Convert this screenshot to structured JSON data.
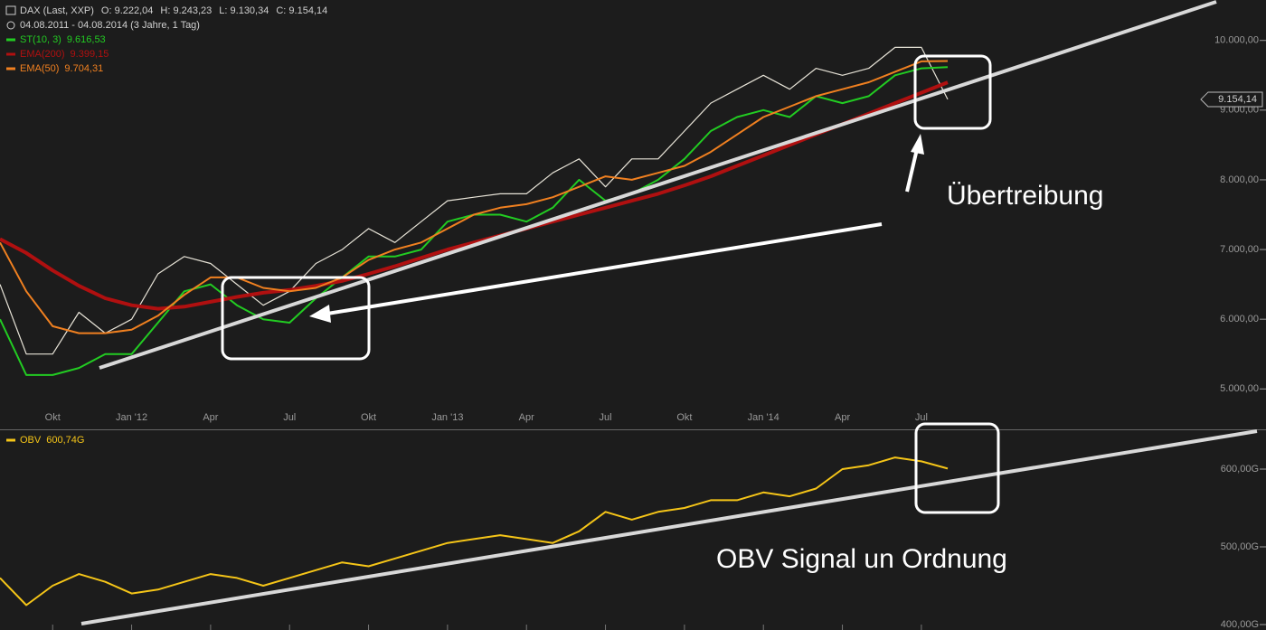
{
  "chart_data": [
    {
      "type": "line",
      "subtitle": "04.08.2011 - 04.08.2014 (3 Jahre, 1 Tag)",
      "ohlc": [
        "O: 9.222,04",
        "H: 9.243,23",
        "L: 9.130,34",
        "C: 9.154,14"
      ],
      "categories": [
        null,
        null,
        "Okt",
        null,
        null,
        "Jan '12",
        null,
        null,
        "Apr",
        null,
        null,
        "Jul",
        null,
        null,
        "Okt",
        null,
        null,
        "Jan '13",
        null,
        null,
        "Apr",
        null,
        null,
        "Jul",
        null,
        null,
        "Okt",
        null,
        null,
        "Jan '14",
        null,
        null,
        "Apr",
        null,
        null,
        "Jul",
        null
      ],
      "series": [
        {
          "name": "DAX (Last, XXP)",
          "color": "#e8e4d8",
          "values": [
            6500,
            5500,
            5500,
            6100,
            5800,
            6000,
            6650,
            6900,
            6800,
            6500,
            6200,
            6400,
            6800,
            7000,
            7300,
            7100,
            7400,
            7700,
            7750,
            7800,
            7800,
            8100,
            8300,
            7900,
            8300,
            8300,
            8700,
            9100,
            9300,
            9500,
            9300,
            9600,
            9500,
            9600,
            9900,
            9900,
            9154.14
          ]
        },
        {
          "name": "ST(10, 3)",
          "legend_label": "9.616,53",
          "color": "#22cc22",
          "values": [
            6000,
            5200,
            5200,
            5300,
            5500,
            5500,
            5950,
            6400,
            6500,
            6200,
            6000,
            5950,
            6300,
            6600,
            6900,
            6900,
            7000,
            7400,
            7500,
            7500,
            7400,
            7600,
            8000,
            7700,
            7800,
            8000,
            8300,
            8700,
            8900,
            9000,
            8900,
            9200,
            9100,
            9200,
            9500,
            9600,
            9616.53
          ]
        },
        {
          "name": "EMA(200)",
          "legend_label": "9.399,15",
          "color": "#b01010",
          "values": [
            7150,
            6950,
            6700,
            6480,
            6300,
            6200,
            6150,
            6180,
            6250,
            6320,
            6380,
            6420,
            6480,
            6550,
            6650,
            6760,
            6880,
            7000,
            7100,
            7200,
            7300,
            7400,
            7500,
            7600,
            7700,
            7800,
            7920,
            8050,
            8200,
            8350,
            8500,
            8650,
            8800,
            8950,
            9100,
            9250,
            9399.15
          ]
        },
        {
          "name": "EMA(50)",
          "legend_label": "9.704,31",
          "color": "#f08020",
          "values": [
            7100,
            6400,
            5900,
            5800,
            5800,
            5850,
            6050,
            6350,
            6600,
            6600,
            6450,
            6400,
            6450,
            6600,
            6850,
            7000,
            7100,
            7300,
            7500,
            7600,
            7650,
            7750,
            7900,
            8050,
            8000,
            8100,
            8200,
            8400,
            8650,
            8900,
            9050,
            9200,
            9300,
            9400,
            9550,
            9700,
            9704.31
          ]
        }
      ],
      "price_marker": {
        "value": 9154.14,
        "label": "9.154,14"
      },
      "ylim": [
        4420,
        10580
      ],
      "yticks": [
        {
          "value": 5000,
          "label": "5.000,00"
        },
        {
          "value": 6000,
          "label": "6.000,00"
        },
        {
          "value": 7000,
          "label": "7.000,00"
        },
        {
          "value": 8000,
          "label": "8.000,00"
        },
        {
          "value": 9000,
          "label": "9.000,00"
        },
        {
          "value": 10000,
          "label": "10.000,00"
        }
      ],
      "annotations": [
        "Übertreibung"
      ]
    },
    {
      "type": "line",
      "series": [
        {
          "name": "OBV",
          "legend_label": "600,74G",
          "color": "#f5c518",
          "values": [
            460,
            425,
            450,
            465,
            455,
            440,
            445,
            455,
            465,
            460,
            450,
            460,
            470,
            480,
            475,
            485,
            495,
            505,
            510,
            515,
            510,
            505,
            520,
            545,
            535,
            545,
            550,
            560,
            560,
            570,
            565,
            575,
            600,
            605,
            615,
            610,
            600.74
          ]
        }
      ],
      "ylim": [
        393,
        650
      ],
      "yticks": [
        {
          "value": 400,
          "label": "400,00G"
        },
        {
          "value": 500,
          "label": "500,00G"
        },
        {
          "value": 600,
          "label": "600,00G"
        }
      ],
      "annotations": [
        "OBV Signal un Ordnung"
      ]
    }
  ]
}
